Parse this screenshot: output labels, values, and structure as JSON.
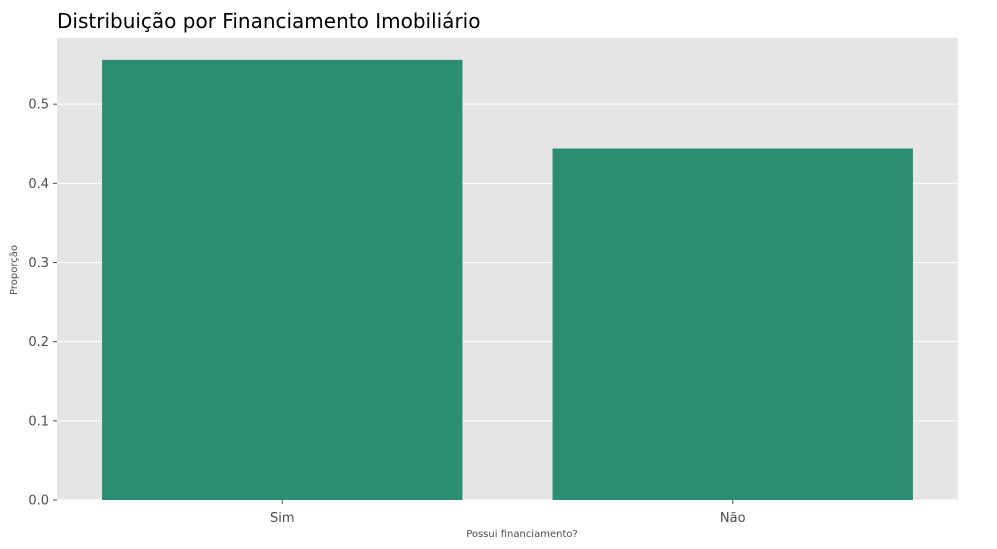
{
  "chart_data": {
    "type": "bar",
    "title": "Distribuição por Financiamento Imobiliário",
    "xlabel": "Possui financiamento?",
    "ylabel": "Proporção",
    "categories": [
      "Sim",
      "Não"
    ],
    "values": [
      0.556,
      0.444
    ],
    "ylim": [
      0,
      0.5836
    ],
    "yticks": [
      "0.0",
      "0.1",
      "0.2",
      "0.3",
      "0.4",
      "0.5"
    ],
    "grid": true,
    "legend": "none",
    "colors": {
      "bar": "#2b8e72",
      "plot_background": "#e5e5e5",
      "grid": "#ffffff"
    }
  }
}
